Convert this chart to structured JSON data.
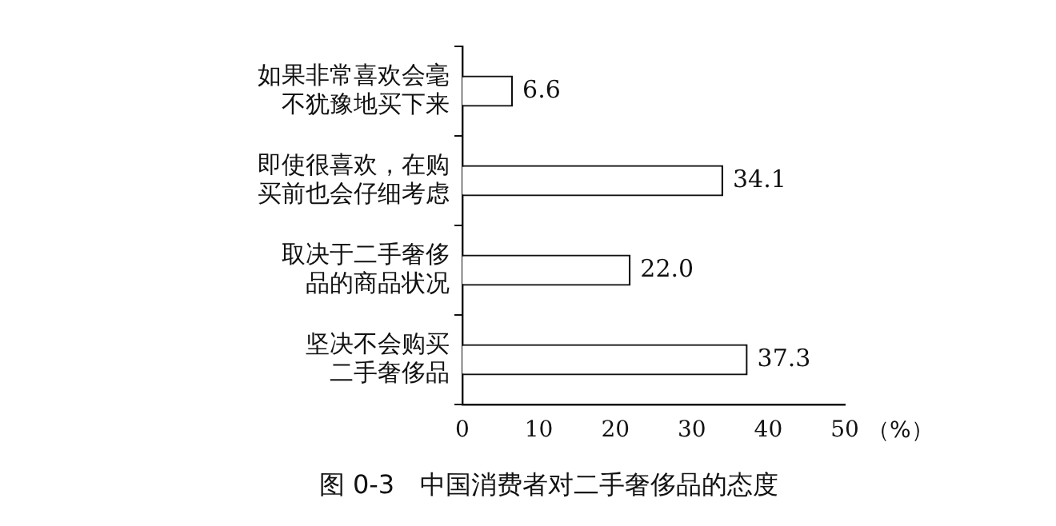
{
  "chart_data": {
    "type": "bar",
    "orientation": "horizontal",
    "title": "图 0-3　中国消费者对二手奢侈品的态度",
    "xlabel": "（%）",
    "categories": [
      "如果非常喜欢会毫不犹豫地买下来",
      "即使很喜欢，在购买前也会仔细考虑",
      "取决于二手奢侈品的商品状况",
      "坚决不会购买二手奢侈品"
    ],
    "values": [
      6.6,
      34.1,
      22.0,
      37.3
    ],
    "value_labels": [
      "6.6",
      "34.1",
      "22.0",
      "37.3"
    ],
    "color": "#ffffff",
    "grid": false,
    "legend": false,
    "xlim": [
      0,
      50
    ],
    "xticks": [
      0,
      10,
      20,
      30,
      40,
      50
    ]
  }
}
